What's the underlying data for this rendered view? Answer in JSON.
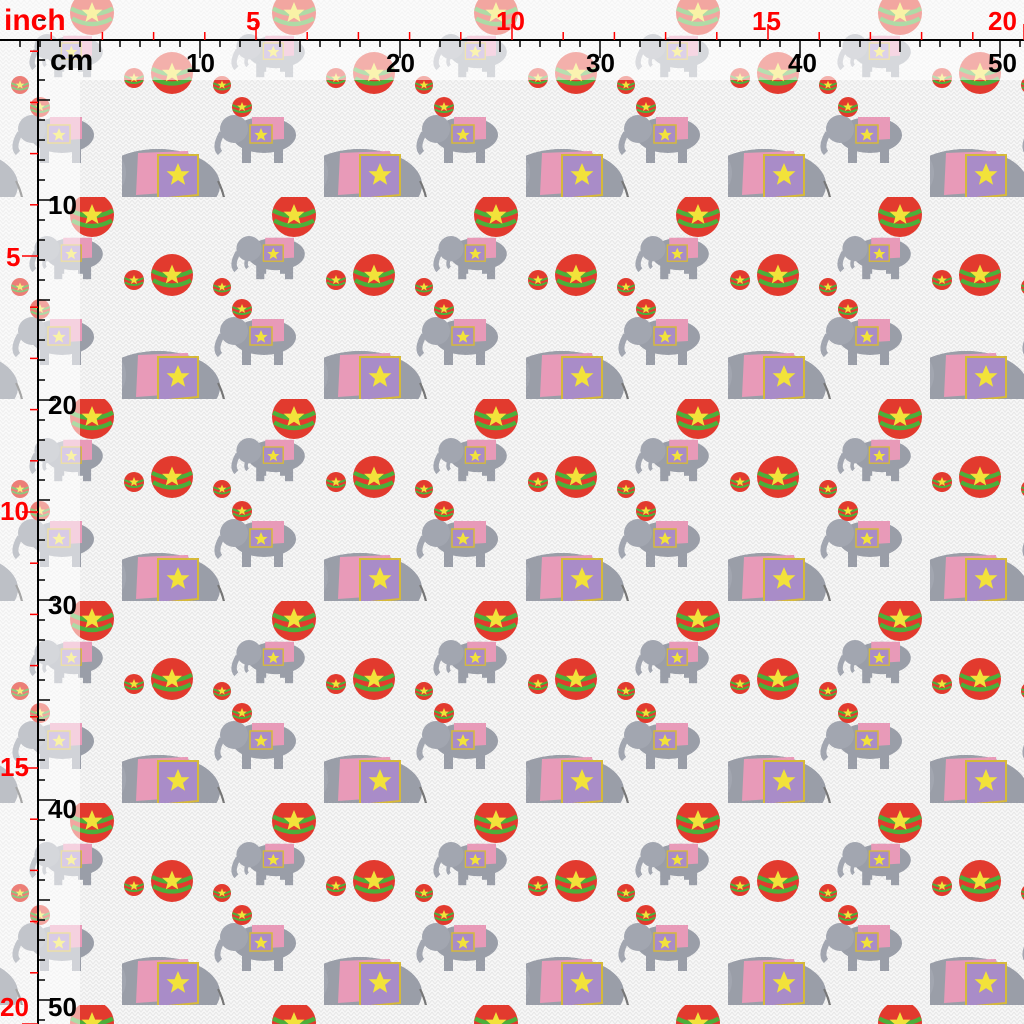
{
  "rulers": {
    "inch_unit": "inch",
    "cm_unit": "cm",
    "top_inch_labels": [
      "5",
      "10",
      "15",
      "20"
    ],
    "top_cm_labels": [
      "10",
      "20",
      "30",
      "40",
      "50"
    ],
    "left_inch_labels": [
      "5",
      "10",
      "15",
      "20"
    ],
    "left_cm_labels": [
      "10",
      "20",
      "30",
      "40",
      "50"
    ],
    "inch_color": "#ff0000",
    "cm_color": "#000000"
  },
  "pattern": {
    "motifs": [
      "large-elephant",
      "small-elephant",
      "red-star-ball"
    ],
    "colors": {
      "elephant": "#9a9ea8",
      "blanket_pink": "#e89ab8",
      "blanket_purple": "#a98cc8",
      "ball": "#e23a2e",
      "stripe": "#4caf3a",
      "star": "#f2e23a",
      "background": "#f6f6f6"
    }
  }
}
